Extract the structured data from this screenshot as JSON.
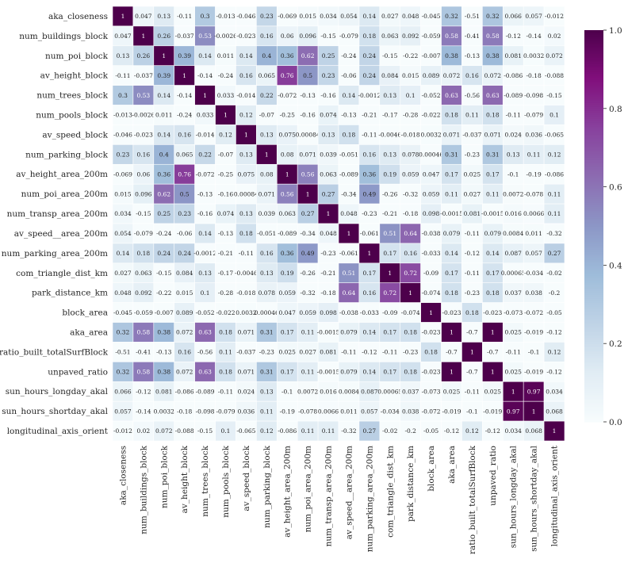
{
  "chart_data": {
    "type": "heatmap",
    "title": "",
    "labels": [
      "aka_closeness",
      "num_buildings_block",
      "num_poi_block",
      "av_height_block",
      "num_trees_block",
      "num_pools_block",
      "av_speed_block",
      "num_parking_block",
      "av_height_area_200m",
      "num_poi_area_200m",
      "num_transp_area_200m",
      "av_speed__area_200m",
      "num_parking_area_200m",
      "com_triangle_dist_km",
      "park_distance_km",
      "block_area",
      "aka_area",
      "ratio_built_totalSurfBlock",
      "unpaved_ratio",
      "sun_hours_longday_akal",
      "sun_hours_shortday_akal",
      "longitudinal_axis_orient"
    ],
    "values": [
      [
        1,
        0.047,
        0.13,
        -0.11,
        0.3,
        -0.013,
        -0.046,
        0.23,
        -0.069,
        0.015,
        0.034,
        0.054,
        0.14,
        0.027,
        0.048,
        -0.045,
        0.32,
        -0.51,
        0.32,
        0.066,
        0.057,
        -0.012
      ],
      [
        0.047,
        1,
        0.26,
        -0.037,
        0.53,
        -0.0026,
        -0.023,
        0.16,
        0.06,
        0.096,
        -0.15,
        -0.079,
        0.18,
        0.063,
        0.092,
        -0.059,
        0.58,
        -0.41,
        0.58,
        -0.12,
        -0.14,
        0.02
      ],
      [
        0.13,
        0.26,
        1,
        0.39,
        0.14,
        0.011,
        0.14,
        0.4,
        0.36,
        0.62,
        0.25,
        -0.24,
        0.24,
        -0.15,
        -0.22,
        -0.007,
        0.38,
        -0.13,
        0.38,
        0.081,
        0.0032,
        0.072
      ],
      [
        -0.11,
        -0.037,
        0.39,
        1,
        -0.14,
        -0.24,
        0.16,
        0.065,
        0.76,
        0.5,
        0.23,
        -0.06,
        0.24,
        0.084,
        0.015,
        0.089,
        0.072,
        0.16,
        0.072,
        -0.086,
        -0.18,
        -0.088
      ],
      [
        0.3,
        0.53,
        0.14,
        -0.14,
        1,
        0.033,
        -0.014,
        0.22,
        -0.072,
        -0.13,
        -0.16,
        0.14,
        -0.0012,
        0.13,
        0.1,
        -0.052,
        0.63,
        -0.56,
        0.63,
        -0.089,
        -0.098,
        -0.15
      ],
      [
        -0.013,
        -0.0026,
        0.011,
        -0.24,
        0.033,
        1,
        0.12,
        -0.07,
        -0.25,
        -0.16,
        0.074,
        -0.13,
        -0.21,
        -0.17,
        -0.28,
        -0.022,
        0.18,
        0.11,
        0.18,
        -0.11,
        -0.079,
        0.1
      ],
      [
        -0.046,
        -0.023,
        0.14,
        0.16,
        -0.014,
        0.12,
        1,
        0.13,
        0.075,
        0.00084,
        0.13,
        0.18,
        -0.11,
        -0.0046,
        -0.018,
        0.0032,
        0.071,
        -0.037,
        0.071,
        0.024,
        0.036,
        -0.065
      ],
      [
        0.23,
        0.16,
        0.4,
        0.065,
        0.22,
        -0.07,
        0.13,
        1,
        0.08,
        0.071,
        0.039,
        -0.051,
        0.16,
        0.13,
        0.078,
        0.00046,
        0.31,
        -0.23,
        0.31,
        0.13,
        0.11,
        0.12
      ],
      [
        -0.069,
        0.06,
        0.36,
        0.76,
        -0.072,
        -0.25,
        0.075,
        0.08,
        1,
        0.56,
        0.063,
        -0.089,
        0.36,
        0.19,
        0.059,
        0.047,
        0.17,
        0.025,
        0.17,
        -0.1,
        -0.19,
        -0.086
      ],
      [
        0.015,
        0.096,
        0.62,
        0.5,
        -0.13,
        -0.16,
        0.00084,
        0.071,
        0.56,
        1,
        0.27,
        -0.34,
        0.49,
        -0.26,
        -0.32,
        0.059,
        0.11,
        0.027,
        0.11,
        0.0072,
        -0.078,
        0.11
      ],
      [
        0.034,
        -0.15,
        0.25,
        0.23,
        -0.16,
        0.074,
        0.13,
        0.039,
        0.063,
        0.27,
        1,
        0.048,
        -0.23,
        -0.21,
        -0.18,
        0.098,
        -0.0015,
        0.081,
        -0.0015,
        0.016,
        0.0066,
        0.11
      ],
      [
        0.054,
        -0.079,
        -0.24,
        -0.06,
        0.14,
        -0.13,
        0.18,
        -0.051,
        -0.089,
        -0.34,
        0.048,
        1,
        -0.061,
        0.51,
        0.64,
        -0.038,
        0.079,
        -0.11,
        0.079,
        0.0084,
        0.011,
        -0.32
      ],
      [
        0.14,
        0.18,
        0.24,
        0.24,
        -0.0012,
        -0.21,
        -0.11,
        0.16,
        0.36,
        0.49,
        -0.23,
        -0.061,
        1,
        0.17,
        0.16,
        -0.033,
        0.14,
        -0.12,
        0.14,
        0.087,
        0.057,
        0.27
      ],
      [
        0.027,
        0.063,
        -0.15,
        0.084,
        0.13,
        -0.17,
        -0.0046,
        0.13,
        0.19,
        -0.26,
        -0.21,
        0.51,
        0.17,
        1,
        0.72,
        -0.09,
        0.17,
        -0.11,
        0.17,
        0.00065,
        -0.034,
        -0.02
      ],
      [
        0.048,
        0.092,
        -0.22,
        0.015,
        0.1,
        -0.28,
        -0.018,
        0.078,
        0.059,
        -0.32,
        -0.18,
        0.64,
        0.16,
        0.72,
        1,
        -0.074,
        0.18,
        -0.23,
        0.18,
        0.037,
        0.038,
        -0.2
      ],
      [
        -0.045,
        -0.059,
        -0.007,
        0.089,
        -0.052,
        -0.022,
        0.0032,
        0.00046,
        0.047,
        0.059,
        0.098,
        -0.038,
        -0.033,
        -0.09,
        -0.074,
        1,
        -0.023,
        0.18,
        -0.023,
        -0.073,
        -0.072,
        -0.05
      ],
      [
        0.32,
        0.58,
        0.38,
        0.072,
        0.63,
        0.18,
        0.071,
        0.31,
        0.17,
        0.11,
        -0.0015,
        0.079,
        0.14,
        0.17,
        0.18,
        -0.023,
        1,
        -0.7,
        1,
        0.025,
        -0.019,
        -0.12
      ],
      [
        -0.51,
        -0.41,
        -0.13,
        0.16,
        -0.56,
        0.11,
        -0.037,
        -0.23,
        0.025,
        0.027,
        0.081,
        -0.11,
        -0.12,
        -0.11,
        -0.23,
        0.18,
        -0.7,
        1,
        -0.7,
        -0.11,
        -0.1,
        0.12
      ],
      [
        0.32,
        0.58,
        0.38,
        0.072,
        0.63,
        0.18,
        0.071,
        0.31,
        0.17,
        0.11,
        -0.0015,
        0.079,
        0.14,
        0.17,
        0.18,
        -0.023,
        1,
        -0.7,
        1,
        0.025,
        -0.019,
        -0.12
      ],
      [
        0.066,
        -0.12,
        0.081,
        -0.086,
        -0.089,
        -0.11,
        0.024,
        0.13,
        -0.1,
        0.0072,
        0.016,
        0.0084,
        0.087,
        0.00065,
        0.037,
        -0.073,
        0.025,
        -0.11,
        0.025,
        1,
        0.97,
        0.034
      ],
      [
        0.057,
        -0.14,
        0.0032,
        -0.18,
        -0.098,
        -0.079,
        0.036,
        0.11,
        -0.19,
        -0.078,
        0.0066,
        0.011,
        0.057,
        -0.034,
        0.038,
        -0.072,
        -0.019,
        -0.1,
        -0.019,
        0.97,
        1,
        0.068
      ],
      [
        -0.012,
        0.02,
        0.072,
        -0.088,
        -0.15,
        0.1,
        -0.065,
        0.12,
        -0.086,
        0.11,
        0.11,
        -0.32,
        0.27,
        -0.02,
        -0.2,
        -0.05,
        -0.12,
        0.12,
        -0.12,
        0.034,
        0.068,
        1
      ]
    ],
    "colormap": "BuPu",
    "colormap_stops": [
      "#f7fcfd",
      "#e0ecf4",
      "#bfd3e6",
      "#9ebcda",
      "#8c96c6",
      "#8c6bb1",
      "#88419d",
      "#810f7c",
      "#4d004b"
    ],
    "color_range": [
      0.0,
      1.0
    ],
    "colorbar_ticks": [
      "0.0",
      "0.2",
      "0.4",
      "0.6",
      "0.8",
      "1.0"
    ],
    "annotated": true,
    "legend": "colorbar-right"
  }
}
